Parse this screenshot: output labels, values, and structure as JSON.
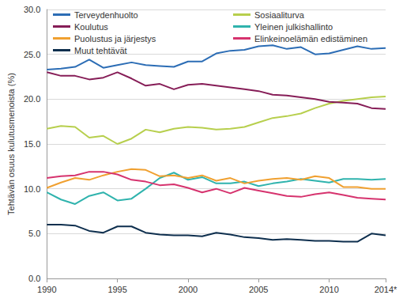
{
  "chart_data": {
    "type": "line",
    "y_label": "Tehtävän osuus kulutusmenoista (%)",
    "categories": [
      "1990",
      null,
      null,
      null,
      null,
      "1995",
      null,
      null,
      null,
      null,
      "2000",
      null,
      null,
      null,
      null,
      "2005",
      null,
      null,
      null,
      null,
      "2010",
      null,
      null,
      null,
      "2014*"
    ],
    "ylim": [
      0,
      30
    ],
    "yticks": [
      {
        "value": 0,
        "label": "0.0"
      },
      {
        "value": 5,
        "label": "5.0"
      },
      {
        "value": 10,
        "label": "10.0"
      },
      {
        "value": 15,
        "label": "15.0"
      },
      {
        "value": 20,
        "label": "20.0"
      },
      {
        "value": 25,
        "label": "25.0"
      },
      {
        "value": 30,
        "label": "30.0"
      }
    ],
    "grid": true,
    "legend": "top",
    "series": [
      {
        "name": "Terveydenhuolto",
        "color": "#2c6db5",
        "values": [
          23.3,
          23.4,
          23.6,
          24.4,
          23.5,
          23.8,
          24.1,
          23.8,
          23.7,
          23.6,
          24.2,
          24.2,
          25.1,
          25.4,
          25.5,
          25.9,
          26.0,
          25.6,
          25.8,
          25.0,
          25.1,
          25.5,
          25.9,
          25.6,
          25.7
        ]
      },
      {
        "name": "Sosiaaliturva",
        "color": "#b7cf4d",
        "values": [
          16.7,
          17.0,
          16.9,
          15.7,
          15.9,
          15.0,
          15.6,
          16.6,
          16.3,
          16.7,
          16.9,
          16.8,
          16.6,
          16.7,
          16.9,
          17.4,
          17.9,
          18.1,
          18.4,
          19.0,
          19.5,
          19.8,
          20.0,
          20.2,
          20.3
        ]
      },
      {
        "name": "Koulutus",
        "color": "#861d57",
        "values": [
          23.0,
          22.6,
          22.6,
          22.2,
          22.4,
          23.0,
          22.3,
          21.5,
          21.7,
          21.1,
          21.6,
          21.7,
          21.5,
          21.3,
          21.1,
          20.9,
          20.5,
          20.4,
          20.2,
          20.0,
          19.7,
          19.6,
          19.5,
          19.0,
          18.9
        ]
      },
      {
        "name": "Yleinen julkishallinto",
        "color": "#2fb3ad",
        "values": [
          9.6,
          8.8,
          8.3,
          9.2,
          9.6,
          8.7,
          8.9,
          10.0,
          11.2,
          11.8,
          11.0,
          11.3,
          10.6,
          10.6,
          10.8,
          10.3,
          10.6,
          10.8,
          11.1,
          10.9,
          10.7,
          11.1,
          11.1,
          11.0,
          11.1
        ]
      },
      {
        "name": "Puolustus ja järjestys",
        "color": "#f0a030",
        "values": [
          10.1,
          10.7,
          11.2,
          11.0,
          11.5,
          11.9,
          12.2,
          12.1,
          11.4,
          11.5,
          11.2,
          11.5,
          10.9,
          11.2,
          10.6,
          10.9,
          11.1,
          11.2,
          11.0,
          11.4,
          11.2,
          10.2,
          10.2,
          10.0,
          10.0
        ]
      },
      {
        "name": "Elinkeinoelämän edistäminen",
        "color": "#d6336e",
        "values": [
          11.2,
          11.4,
          11.5,
          11.9,
          11.9,
          11.6,
          11.0,
          10.8,
          10.4,
          10.5,
          10.1,
          9.6,
          10.0,
          9.5,
          10.1,
          9.8,
          9.5,
          9.2,
          9.1,
          9.4,
          9.6,
          9.3,
          9.0,
          8.9,
          8.8
        ]
      },
      {
        "name": "Muut tehtävät",
        "color": "#0e2f4e",
        "values": [
          6.0,
          6.0,
          5.9,
          5.3,
          5.1,
          5.8,
          5.8,
          5.1,
          4.9,
          4.8,
          4.8,
          4.7,
          5.1,
          4.9,
          4.6,
          4.5,
          4.3,
          4.4,
          4.3,
          4.2,
          4.2,
          4.1,
          4.1,
          5.0,
          4.8
        ]
      }
    ]
  }
}
